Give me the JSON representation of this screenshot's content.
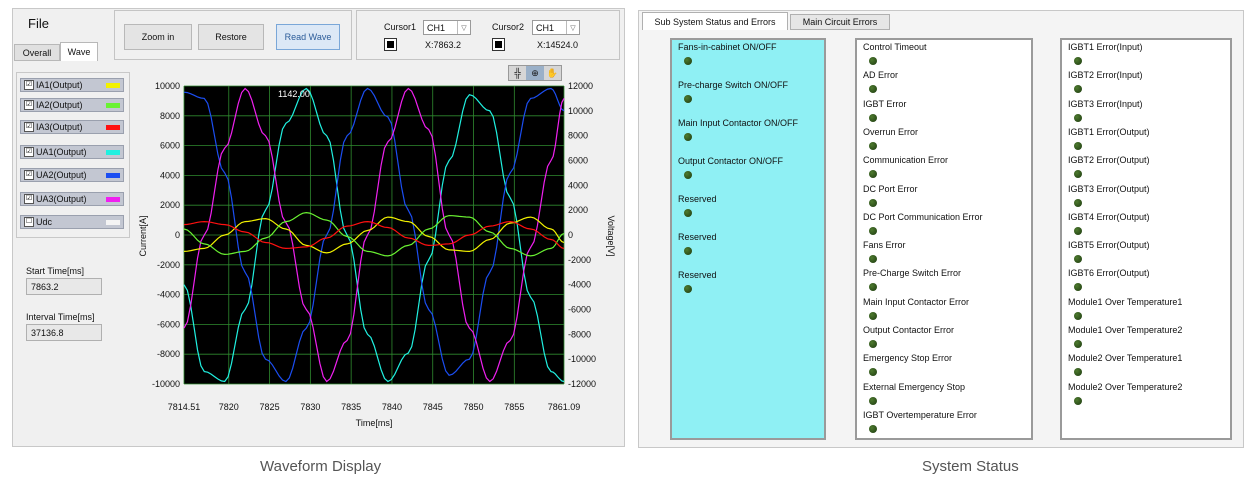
{
  "left": {
    "file_label": "File",
    "tabs": [
      {
        "label": "Overall"
      },
      {
        "label": "Wave"
      }
    ],
    "toolbar": {
      "zoom_in": "Zoom in",
      "restore": "Restore",
      "read_wave": "Read Wave"
    },
    "cursor1": {
      "label": "Cursor1",
      "channel": "CH1",
      "x": "X:7863.2"
    },
    "cursor2": {
      "label": "Cursor2",
      "channel": "CH1",
      "x": "X:14524.0"
    },
    "legend": [
      {
        "label": "IA1(Output)",
        "checked": "☑",
        "color": "#f2f200"
      },
      {
        "label": "IA2(Output)",
        "checked": "☑",
        "color": "#6af232"
      },
      {
        "label": "IA3(Output)",
        "checked": "☑",
        "color": "#ff1010"
      },
      {
        "label": "UA1(Output)",
        "checked": "☑",
        "color": "#20f0e0"
      },
      {
        "label": "UA2(Output)",
        "checked": "☑",
        "color": "#1b4ef2"
      },
      {
        "label": "UA3(Output)",
        "checked": "☑",
        "color": "#f020f0"
      },
      {
        "label": "Udc",
        "checked": "☐",
        "color": "#f4f4f4"
      }
    ],
    "start_time": {
      "label": "Start Time[ms]",
      "value": "7863.2"
    },
    "interval_time": {
      "label": "Interval Time[ms]",
      "value": "37136.8"
    },
    "plot_tools": {
      "cursor": "╬",
      "zoom": "⊕",
      "pan": "✋"
    },
    "caption": "Waveform Display"
  },
  "chart_data": {
    "type": "line",
    "xlabel": "Time[ms]",
    "ylabel": "Current[A]",
    "y2label": "Voltage[V]",
    "xlim": [
      7814.51,
      7861.09
    ],
    "ylim": [
      -10000,
      10000
    ],
    "y2lim": [
      -12000,
      12000
    ],
    "x_ticks": [
      "7814.51",
      "7820",
      "7825",
      "7830",
      "7835",
      "7840",
      "7845",
      "7850",
      "7855",
      "7861.09"
    ],
    "x_tick_values": [
      7814.51,
      7820,
      7825,
      7830,
      7835,
      7840,
      7845,
      7850,
      7855,
      7861.09
    ],
    "y_ticks": [
      10000,
      8000,
      6000,
      4000,
      2000,
      0,
      -2000,
      -4000,
      -6000,
      -8000,
      -10000
    ],
    "y2_ticks": [
      12000,
      10000,
      8000,
      6000,
      4000,
      2000,
      0,
      -2000,
      -4000,
      -6000,
      -8000,
      -10000,
      -12000
    ],
    "annotation": "1142.00",
    "grid": true,
    "series": [
      {
        "name": "UA1(Output)",
        "color": "#20f0e0",
        "axis": "y2",
        "x": [
          7814.51,
          7817,
          7819.5,
          7822,
          7824.5,
          7827,
          7829.5,
          7832,
          7834.5,
          7837,
          7839.5,
          7842,
          7844.5,
          7847,
          7849.5,
          7852,
          7854.5,
          7857,
          7859.5,
          7861.09
        ],
        "y": [
          -4000,
          -11000,
          -11800,
          -6000,
          2000,
          9000,
          11800,
          8000,
          0,
          -8000,
          -11800,
          -9500,
          -2000,
          6000,
          11300,
          10000,
          3000,
          -5000,
          -11000,
          -11800
        ]
      },
      {
        "name": "UA2(Output)",
        "color": "#1b4ef2",
        "axis": "y2",
        "x": [
          7814.51,
          7817,
          7819.5,
          7822,
          7824.5,
          7827,
          7829.5,
          7832,
          7834.5,
          7837,
          7839.5,
          7842,
          7844.5,
          7847,
          7849.5,
          7852,
          7854.5,
          7857,
          7859.5,
          7861.09
        ],
        "y": [
          11500,
          11000,
          5000,
          -3000,
          -10000,
          -11800,
          -7500,
          0,
          8000,
          11800,
          9500,
          2000,
          -6000,
          -11300,
          -10000,
          -3000,
          5000,
          11000,
          11800,
          10000
        ]
      },
      {
        "name": "UA3(Output)",
        "color": "#f020f0",
        "axis": "y2",
        "x": [
          7814.51,
          7817,
          7819.5,
          7822,
          7824.5,
          7827,
          7829.5,
          7832,
          7834.5,
          7837,
          7839.5,
          7842,
          7844.5,
          7847,
          7849.5,
          7852,
          7854.5,
          7857,
          7859.5,
          7861.09
        ],
        "y": [
          -7500,
          0,
          7000,
          11800,
          8000,
          1000,
          -6000,
          -11800,
          -8500,
          0,
          7500,
          11800,
          8500,
          0,
          -7500,
          -11800,
          -8500,
          -1000,
          6000,
          11000
        ]
      },
      {
        "name": "IA1(Output)",
        "color": "#f2f200",
        "axis": "y",
        "x": [
          7814.51,
          7817,
          7819.5,
          7822,
          7824.5,
          7827,
          7829.5,
          7832,
          7834.5,
          7837,
          7839.5,
          7842,
          7844.5,
          7847,
          7849.5,
          7852,
          7854.5,
          7857,
          7859.5,
          7861.09
        ],
        "y": [
          -1100,
          -900,
          0,
          900,
          1100,
          400,
          -700,
          -1200,
          -600,
          300,
          1200,
          900,
          -100,
          -1000,
          -1100,
          -300,
          800,
          1200,
          400,
          -500
        ]
      },
      {
        "name": "IA2(Output)",
        "color": "#6af232",
        "axis": "y",
        "x": [
          7814.51,
          7817,
          7819.5,
          7822,
          7824.5,
          7827,
          7829.5,
          7832,
          7834.5,
          7837,
          7839.5,
          7842,
          7844.5,
          7847,
          7849.5,
          7852,
          7854.5,
          7857,
          7859.5,
          7861.09
        ],
        "y": [
          400,
          -600,
          -1300,
          -1100,
          -200,
          900,
          1500,
          1000,
          -100,
          -1100,
          -1400,
          -700,
          400,
          1300,
          1200,
          200,
          -900,
          -1400,
          -900,
          100
        ]
      },
      {
        "name": "IA3(Output)",
        "color": "#ff1010",
        "axis": "y",
        "x": [
          7814.51,
          7817,
          7819.5,
          7822,
          7824.5,
          7827,
          7829.5,
          7832,
          7834.5,
          7837,
          7839.5,
          7842,
          7844.5,
          7847,
          7849.5,
          7852,
          7854.5,
          7857,
          7859.5,
          7861.09
        ],
        "y": [
          700,
          900,
          700,
          200,
          -500,
          -900,
          -800,
          -200,
          600,
          900,
          500,
          -200,
          -700,
          -600,
          0,
          600,
          900,
          400,
          -300,
          -900
        ]
      }
    ]
  },
  "right": {
    "tabs": [
      {
        "label": "Sub System Status and Errors"
      },
      {
        "label": "Main Circuit Errors"
      }
    ],
    "col1": [
      "Fans-in-cabinet ON/OFF",
      "Pre-charge Switch ON/OFF",
      "Main Input Contactor ON/OFF",
      "Output Contactor ON/OFF",
      "Reserved",
      "Reserved",
      "Reserved"
    ],
    "col2": [
      "Control Timeout",
      "AD Error",
      "IGBT Error",
      "Overrun Error",
      "Communication Error",
      "DC Port Error",
      "DC Port Communication Error",
      "Fans Error",
      "Pre-Charge Switch Error",
      "Main Input Contactor Error",
      "Output Contactor Error",
      "Emergency Stop Error",
      "External Emergency Stop",
      "IGBT Overtemperature Error"
    ],
    "col3": [
      "IGBT1 Error(Input)",
      "IGBT2 Error(Input)",
      "IGBT3 Error(Input)",
      "IGBT1 Error(Output)",
      "IGBT2 Error(Output)",
      "IGBT3 Error(Output)",
      "IGBT4 Error(Output)",
      "IGBT5 Error(Output)",
      "IGBT6 Error(Output)",
      "Module1 Over Temperature1",
      "Module1 Over Temperature2",
      "Module2 Over Temperature1",
      "Module2 Over Temperature2"
    ],
    "col1_bg": "#8ff0f4",
    "led_color": "#2f5a1a",
    "caption": "System Status"
  }
}
